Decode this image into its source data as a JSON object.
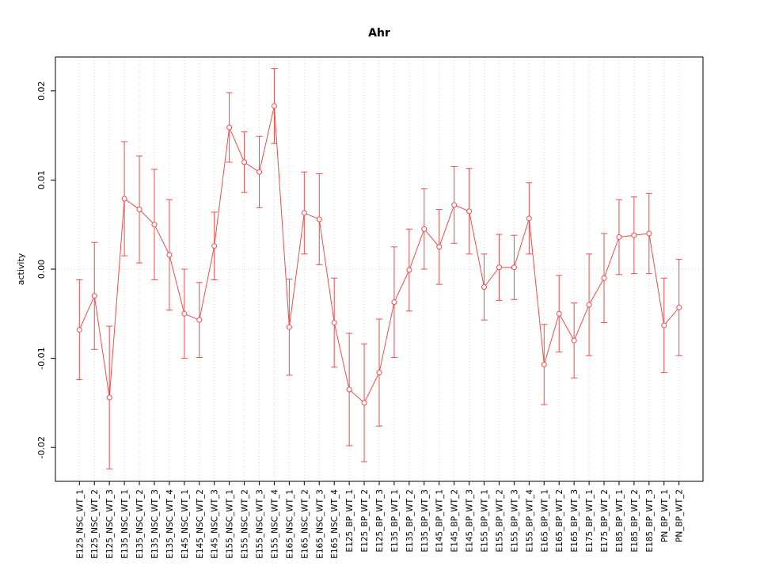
{
  "chart_data": {
    "type": "line",
    "title": "Ahr",
    "xlabel": "",
    "ylabel": "activity",
    "ylim": [
      -0.0238,
      0.0238
    ],
    "yticks": [
      -0.02,
      -0.01,
      0.0,
      0.01,
      0.02
    ],
    "grid": "vertical dotted line at each category, horizontal dotted line at y=0",
    "legend": "none",
    "series_color": "#ee4c4c",
    "grid_color": "#d4d4d4",
    "categories": [
      "E125_NSC_WT_1",
      "E125_NSC_WT_2",
      "E125_NSC_WT_3",
      "E135_NSC_WT_1",
      "E135_NSC_WT_2",
      "E135_NSC_WT_3",
      "E135_NSC_WT_4",
      "E145_NSC_WT_1",
      "E145_NSC_WT_2",
      "E145_NSC_WT_3",
      "E155_NSC_WT_1",
      "E155_NSC_WT_2",
      "E155_NSC_WT_3",
      "E155_NSC_WT_4",
      "E165_NSC_WT_1",
      "E165_NSC_WT_2",
      "E165_NSC_WT_3",
      "E165_NSC_WT_4",
      "E125_BP_WT_1",
      "E125_BP_WT_2",
      "E125_BP_WT_3",
      "E135_BP_WT_1",
      "E135_BP_WT_2",
      "E135_BP_WT_3",
      "E145_BP_WT_1",
      "E145_BP_WT_2",
      "E145_BP_WT_3",
      "E155_BP_WT_1",
      "E155_BP_WT_2",
      "E155_BP_WT_3",
      "E155_BP_WT_4",
      "E165_BP_WT_1",
      "E165_BP_WT_2",
      "E165_BP_WT_3",
      "E175_BP_WT_1",
      "E175_BP_WT_2",
      "E185_BP_WT_1",
      "E185_BP_WT_2",
      "E185_BP_WT_3",
      "PN_BP_WT_1",
      "PN_BP_WT_2"
    ],
    "values": [
      -0.0068,
      -0.003,
      -0.0144,
      0.0079,
      0.0067,
      0.005,
      0.0016,
      -0.005,
      -0.0057,
      0.0026,
      0.0159,
      0.012,
      0.0109,
      0.0183,
      -0.0065,
      0.0063,
      0.0056,
      -0.006,
      -0.0135,
      -0.015,
      -0.0116,
      -0.0037,
      -0.0001,
      0.0045,
      0.0025,
      0.0072,
      0.0065,
      -0.002,
      0.0002,
      0.0002,
      0.0057,
      -0.0107,
      -0.005,
      -0.008,
      -0.004,
      -0.001,
      0.0036,
      0.0038,
      0.004,
      -0.0063,
      -0.0043
    ],
    "errors": [
      0.0056,
      0.006,
      0.008,
      0.0064,
      0.006,
      0.0062,
      0.0062,
      0.005,
      0.0042,
      0.0038,
      0.0039,
      0.0034,
      0.004,
      0.0042,
      0.0054,
      0.0046,
      0.0051,
      0.005,
      0.0063,
      0.0066,
      0.006,
      0.0062,
      0.0046,
      0.0045,
      0.0042,
      0.0043,
      0.0048,
      0.0037,
      0.0037,
      0.0036,
      0.004,
      0.0045,
      0.0043,
      0.0042,
      0.0057,
      0.005,
      0.0042,
      0.0043,
      0.0045,
      0.0053,
      0.0054
    ]
  }
}
